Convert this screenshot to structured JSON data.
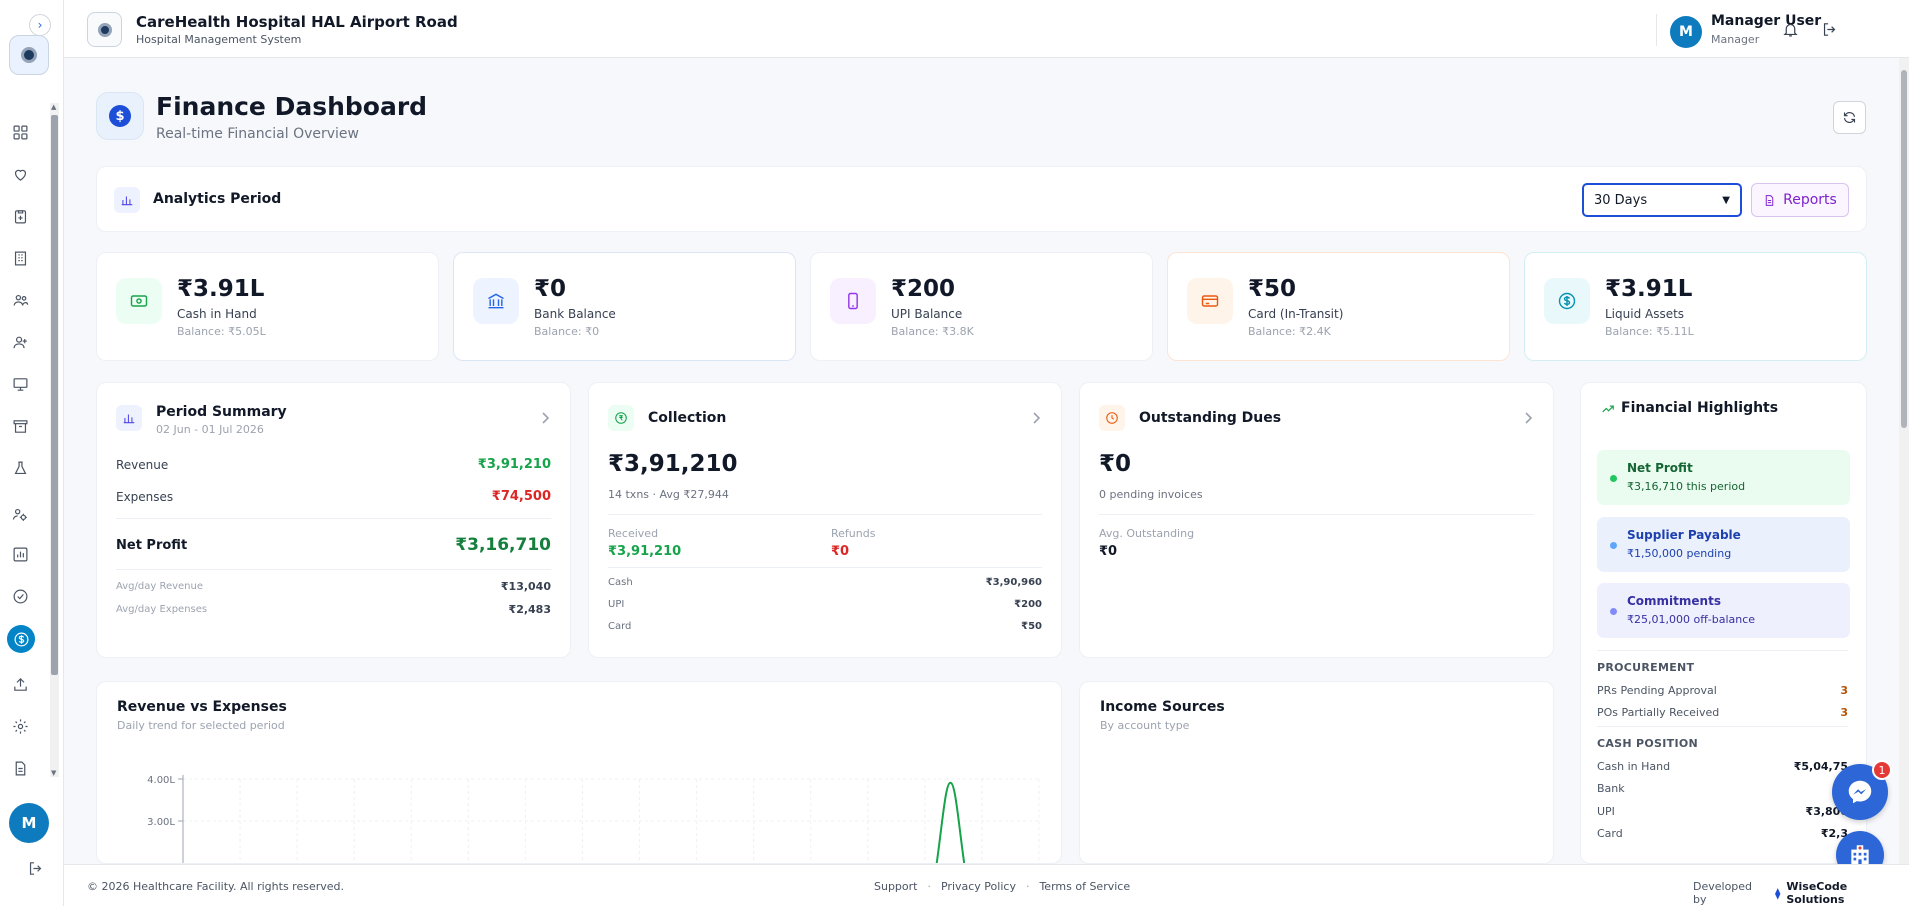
{
  "app": {
    "hospital_name": "CareHealth Hospital HAL Airport Road",
    "subtitle": "Hospital Management System",
    "user_initial": "M",
    "user_name": "Manager User",
    "user_role": "Manager"
  },
  "sidebar": {
    "items": [
      {
        "icon": "dashboard-grid-icon"
      },
      {
        "icon": "heart-icon"
      },
      {
        "icon": "clipboard-plus-icon"
      },
      {
        "icon": "building-icon"
      },
      {
        "icon": "users-icon"
      },
      {
        "icon": "user-plus-icon"
      },
      {
        "icon": "monitor-icon"
      },
      {
        "icon": "archive-icon"
      },
      {
        "icon": "flask-icon"
      },
      {
        "icon": "users-gear-icon"
      },
      {
        "icon": "bar-chart-icon"
      },
      {
        "icon": "check-circle-icon"
      },
      {
        "icon": "finance-dollar-icon",
        "active": true
      },
      {
        "icon": "upload-icon"
      },
      {
        "icon": "settings-icon"
      },
      {
        "icon": "document-icon"
      }
    ],
    "avatar_initial": "M"
  },
  "page": {
    "title": "Finance Dashboard",
    "subtitle": "Real-time Financial Overview"
  },
  "analytics": {
    "label": "Analytics Period",
    "selected_period": "30 Days",
    "reports_label": "Reports"
  },
  "stats": [
    {
      "value": "₹3.91L",
      "label": "Cash in Hand",
      "balance": "Balance: ₹5.05L",
      "color": "#16a34a",
      "bg": "#ecfdf3",
      "border": "#edf0f4"
    },
    {
      "value": "₹0",
      "label": "Bank Balance",
      "balance": "Balance: ₹0",
      "color": "#2563eb",
      "bg": "#eef4ff",
      "border": "#dbe6f5"
    },
    {
      "value": "₹200",
      "label": "UPI Balance",
      "balance": "Balance: ₹3.8K",
      "color": "#9333ea",
      "bg": "#f8f0ff",
      "border": "#edf0f4"
    },
    {
      "value": "₹50",
      "label": "Card (In-Transit)",
      "balance": "Balance: ₹2.4K",
      "color": "#ea580c",
      "bg": "#fff4ea",
      "border": "#fde4d3"
    },
    {
      "value": "₹3.91L",
      "label": "Liquid Assets",
      "balance": "Balance: ₹5.11L",
      "color": "#0891b2",
      "bg": "#e9f9fb",
      "border": "#d3eef3"
    }
  ],
  "period_summary": {
    "title": "Period Summary",
    "range": "02 Jun - 01 Jul 2026",
    "revenue_label": "Revenue",
    "revenue": "₹3,91,210",
    "expenses_label": "Expenses",
    "expenses": "₹74,500",
    "net_profit_label": "Net Profit",
    "net_profit": "₹3,16,710",
    "avg_rev_label": "Avg/day Revenue",
    "avg_rev": "₹13,040",
    "avg_exp_label": "Avg/day Expenses",
    "avg_exp": "₹2,483"
  },
  "collection": {
    "title": "Collection",
    "amount": "₹3,91,210",
    "meta": "14 txns · Avg ₹27,944",
    "received_label": "Received",
    "received": "₹3,91,210",
    "refunds_label": "Refunds",
    "refunds": "₹0",
    "modes": [
      {
        "label": "Cash",
        "value": "₹3,90,960"
      },
      {
        "label": "UPI",
        "value": "₹200"
      },
      {
        "label": "Card",
        "value": "₹50"
      }
    ]
  },
  "outstanding": {
    "title": "Outstanding Dues",
    "amount": "₹0",
    "meta": "0 pending invoices",
    "avg_label": "Avg. Outstanding",
    "avg": "₹0"
  },
  "highlights": {
    "title": "Financial Highlights",
    "boxes": [
      {
        "title": "Net Profit",
        "sub": "₹3,16,710 this period",
        "bg": "#eafbf0",
        "fg": "#166534",
        "dot": "#22c55e"
      },
      {
        "title": "Supplier Payable",
        "sub": "₹1,50,000 pending",
        "bg": "#eaf1fd",
        "fg": "#1e40af",
        "dot": "#60a5fa"
      },
      {
        "title": "Commitments",
        "sub": "₹25,01,000 off-balance",
        "bg": "#eef0fd",
        "fg": "#3730a3",
        "dot": "#818cf8"
      }
    ],
    "procurement_title": "PROCUREMENT",
    "procurement": [
      {
        "label": "PRs Pending Approval",
        "value": "3"
      },
      {
        "label": "POs Partially Received",
        "value": "3"
      }
    ],
    "cash_title": "CASH POSITION",
    "cash": [
      {
        "label": "Cash in Hand",
        "value": "₹5,04,75"
      },
      {
        "label": "Bank",
        "value": ""
      },
      {
        "label": "UPI",
        "value": "₹3,800"
      },
      {
        "label": "Card",
        "value": "₹2,3"
      }
    ]
  },
  "revenue_chart": {
    "title": "Revenue vs Expenses",
    "subtitle": "Daily trend for selected period"
  },
  "income": {
    "title": "Income Sources",
    "subtitle": "By account type"
  },
  "chart_data": {
    "type": "line",
    "ylim": [
      0,
      4.0
    ],
    "yticks": [
      "3.00L",
      "4.00L"
    ],
    "series": [
      {
        "color": "#16a34a",
        "peak_value": 3.91,
        "peak_category_index": 26,
        "category_count": 30
      }
    ]
  },
  "footer": {
    "copyright": "© 2026 Healthcare Facility. All rights reserved.",
    "support": "Support",
    "privacy": "Privacy Policy",
    "terms": "Terms of Service",
    "developed_by": "Developed by",
    "company": "WiseCode Solutions"
  },
  "messenger_badge": "1"
}
